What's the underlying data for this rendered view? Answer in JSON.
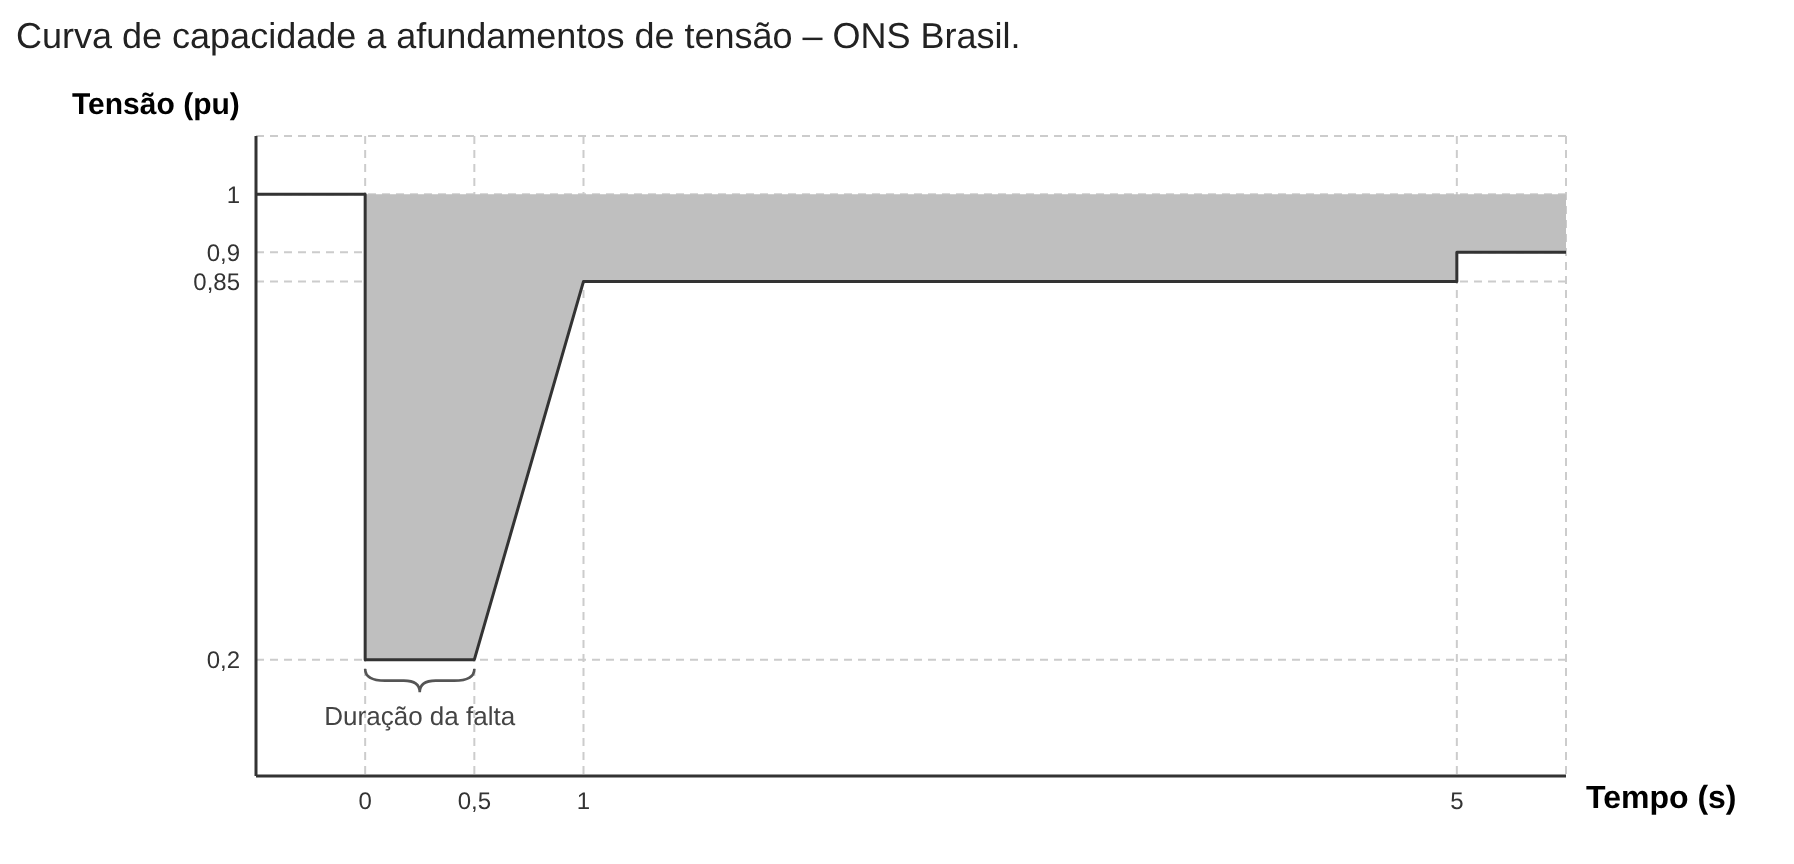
{
  "chart_data": {
    "type": "line",
    "title": "Curva de capacidade a afundamentos de tensão – ONS Brasil.",
    "xlabel": "Tempo (s)",
    "ylabel": "Tensão (pu)",
    "x": [
      -0.5,
      0,
      0,
      0.5,
      1,
      5,
      5,
      5.5
    ],
    "series": [
      {
        "color": "#333333",
        "values": [
          1,
          1,
          0.2,
          0.2,
          0.85,
          0.85,
          0.9,
          0.9
        ],
        "lower": [
          null,
          null,
          0.2,
          0.2,
          0.85,
          0.85,
          0.9,
          0.9
        ],
        "upper": [
          null,
          null,
          1,
          1,
          1,
          1,
          1,
          1
        ]
      }
    ],
    "xlim": [
      -0.5,
      5.5
    ],
    "xticks": [
      0,
      {
        "value": 0.5,
        "label": "0,5"
      },
      1,
      5
    ],
    "ylim": [
      0,
      1.1
    ],
    "yticks": [
      {
        "value": 0.2,
        "label": "0,2"
      },
      {
        "value": 0.85,
        "label": "0,85"
      },
      {
        "value": 0.9,
        "label": "0,9"
      },
      1
    ],
    "annotations": [
      "Duração da falta"
    ],
    "grid": true,
    "marker": "none",
    "line_style": "solid"
  }
}
